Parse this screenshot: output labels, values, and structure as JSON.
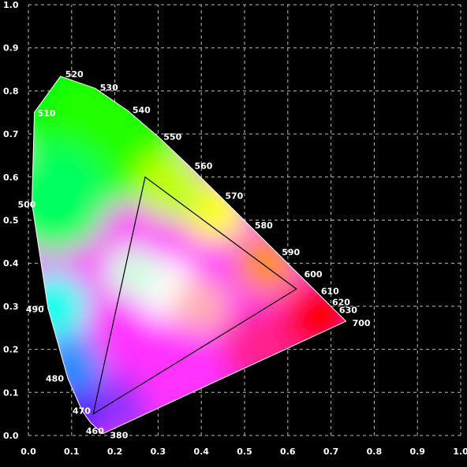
{
  "chart_data": {
    "type": "scatter",
    "xlim": [
      0.0,
      1.0
    ],
    "ylim": [
      0.0,
      1.0
    ],
    "grid": true,
    "x_ticks": [
      "0.0",
      "0.1",
      "0.2",
      "0.3",
      "0.4",
      "0.5",
      "0.6",
      "0.7",
      "0.8",
      "0.9",
      "1.0"
    ],
    "y_ticks": [
      "0.0",
      "0.1",
      "0.2",
      "0.3",
      "0.4",
      "0.5",
      "0.6",
      "0.7",
      "0.8",
      "0.9",
      "1.0"
    ],
    "locus": [
      {
        "nm": "380",
        "x": 0.1741,
        "y": 0.005
      },
      {
        "nm": "",
        "x": 0.1738,
        "y": 0.0049
      },
      {
        "nm": "",
        "x": 0.1736,
        "y": 0.0048
      },
      {
        "nm": "",
        "x": 0.173,
        "y": 0.0048
      },
      {
        "nm": "",
        "x": 0.1726,
        "y": 0.0048
      },
      {
        "nm": "",
        "x": 0.1721,
        "y": 0.0048
      },
      {
        "nm": "",
        "x": 0.1714,
        "y": 0.0051
      },
      {
        "nm": "",
        "x": 0.1703,
        "y": 0.0058
      },
      {
        "nm": "460",
        "x": 0.144,
        "y": 0.0297
      },
      {
        "nm": "470",
        "x": 0.1241,
        "y": 0.0578
      },
      {
        "nm": "480",
        "x": 0.0913,
        "y": 0.1327
      },
      {
        "nm": "490",
        "x": 0.0454,
        "y": 0.295
      },
      {
        "nm": "500",
        "x": 0.0082,
        "y": 0.5384
      },
      {
        "nm": "510",
        "x": 0.0139,
        "y": 0.7502
      },
      {
        "nm": "520",
        "x": 0.0743,
        "y": 0.8338
      },
      {
        "nm": "530",
        "x": 0.1547,
        "y": 0.8059
      },
      {
        "nm": "540",
        "x": 0.2296,
        "y": 0.7543
      },
      {
        "nm": "550",
        "x": 0.3016,
        "y": 0.6923
      },
      {
        "nm": "560",
        "x": 0.3731,
        "y": 0.6245
      },
      {
        "nm": "570",
        "x": 0.4441,
        "y": 0.5547
      },
      {
        "nm": "580",
        "x": 0.5125,
        "y": 0.4866
      },
      {
        "nm": "590",
        "x": 0.5752,
        "y": 0.4242
      },
      {
        "nm": "600",
        "x": 0.627,
        "y": 0.3725
      },
      {
        "nm": "610",
        "x": 0.6658,
        "y": 0.334
      },
      {
        "nm": "620",
        "x": 0.6915,
        "y": 0.3083
      },
      {
        "nm": "630",
        "x": 0.7079,
        "y": 0.292
      },
      {
        "nm": "",
        "x": 0.719,
        "y": 0.2809
      },
      {
        "nm": "",
        "x": 0.726,
        "y": 0.274
      },
      {
        "nm": "",
        "x": 0.73,
        "y": 0.27
      },
      {
        "nm": "",
        "x": 0.732,
        "y": 0.268
      },
      {
        "nm": "",
        "x": 0.7334,
        "y": 0.2666
      },
      {
        "nm": "",
        "x": 0.734,
        "y": 0.266
      },
      {
        "nm": "",
        "x": 0.7344,
        "y": 0.2656
      },
      {
        "nm": "700",
        "x": 0.7347,
        "y": 0.2653
      }
    ],
    "wavelength_labels": [
      {
        "text": "380",
        "x": 0.1741,
        "y": 0.005
      },
      {
        "text": "460",
        "x": 0.144,
        "y": 0.0297
      },
      {
        "text": "470",
        "x": 0.1241,
        "y": 0.0578
      },
      {
        "text": "480",
        "x": 0.0913,
        "y": 0.1327
      },
      {
        "text": "490",
        "x": 0.0454,
        "y": 0.295
      },
      {
        "text": "500",
        "x": 0.0082,
        "y": 0.5384
      },
      {
        "text": "510",
        "x": 0.0139,
        "y": 0.7502
      },
      {
        "text": "520",
        "x": 0.0743,
        "y": 0.8338
      },
      {
        "text": "530",
        "x": 0.1547,
        "y": 0.8059
      },
      {
        "text": "540",
        "x": 0.2296,
        "y": 0.7543
      },
      {
        "text": "550",
        "x": 0.3016,
        "y": 0.6923
      },
      {
        "text": "560",
        "x": 0.3731,
        "y": 0.6245
      },
      {
        "text": "570",
        "x": 0.4441,
        "y": 0.5547
      },
      {
        "text": "580",
        "x": 0.5125,
        "y": 0.4866
      },
      {
        "text": "590",
        "x": 0.5752,
        "y": 0.4242
      },
      {
        "text": "600",
        "x": 0.627,
        "y": 0.3725
      },
      {
        "text": "610",
        "x": 0.6658,
        "y": 0.334
      },
      {
        "text": "620",
        "x": 0.6915,
        "y": 0.3083
      },
      {
        "text": "630",
        "x": 0.7079,
        "y": 0.292
      },
      {
        "text": "700",
        "x": 0.7347,
        "y": 0.2653
      }
    ],
    "gamut_triangle": [
      {
        "x": 0.27,
        "y": 0.6
      },
      {
        "x": 0.62,
        "y": 0.34
      },
      {
        "x": 0.15,
        "y": 0.05
      }
    ],
    "colors": {
      "background": "#000000",
      "grid": "#bbbbbb",
      "text": "#ffffff",
      "triangle": "#000000",
      "white_point": "#ffffff"
    }
  }
}
